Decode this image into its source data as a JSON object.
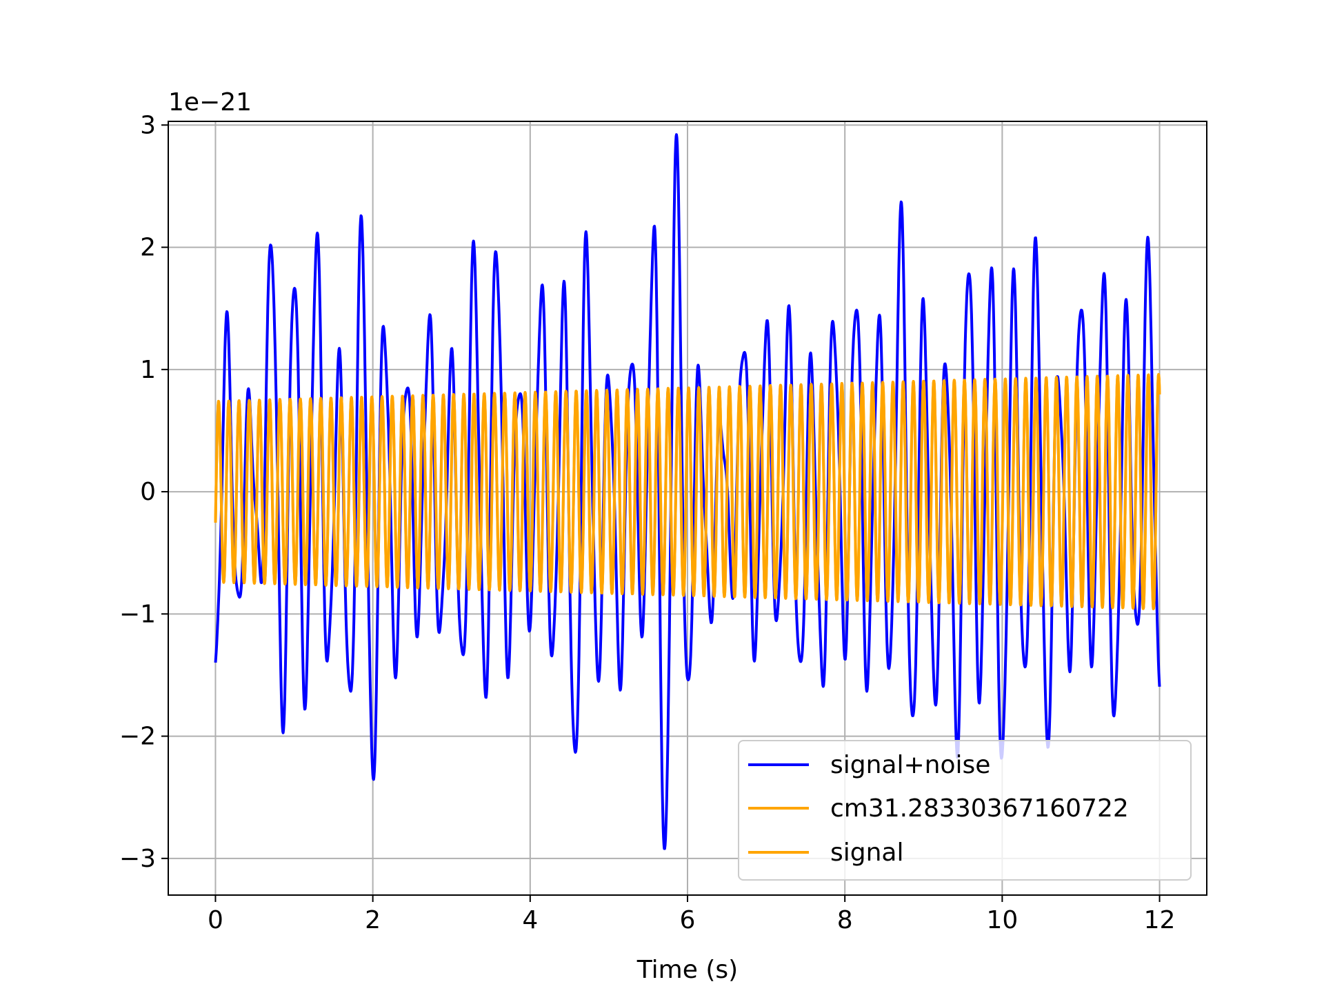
{
  "chart_data": {
    "type": "line",
    "title": "",
    "xlabel": "Time (s)",
    "ylabel": "",
    "y_offset_text": "1e−21",
    "y_scale": 1e-21,
    "xlim": [
      -0.6,
      12.6
    ],
    "ylim": [
      -3.3,
      3.03
    ],
    "xticks": [
      0,
      2,
      4,
      6,
      8,
      10,
      12
    ],
    "xtick_labels": [
      "0",
      "2",
      "4",
      "6",
      "8",
      "10",
      "12"
    ],
    "yticks": [
      -3,
      -2,
      -1,
      0,
      1,
      2,
      3
    ],
    "ytick_labels": [
      "−3",
      "−2",
      "−1",
      "0",
      "1",
      "2",
      "3"
    ],
    "grid": true,
    "legend_position": "lower right",
    "x_range": [
      0,
      12
    ],
    "series": [
      {
        "name": "signal+noise",
        "color": "#0000ff",
        "sample_step": 0.4,
        "start_x": 0,
        "peaks_approx": [
          -1.5,
          1.3,
          -1.0,
          0.7,
          -0.7,
          2.07,
          -1.8,
          1.83,
          -1.65,
          2.08,
          -1.45,
          1.0,
          -1.8,
          2.13,
          -2.32,
          1.42,
          -1.35,
          1.0,
          -1.05,
          1.4,
          -1.2,
          1.0,
          -1.5,
          1.92,
          -1.65,
          2.03,
          -1.35,
          0.95,
          -1.0,
          1.65,
          -1.4,
          1.55,
          -2.3,
          2.0,
          -1.5,
          1.0,
          -1.45,
          1.2,
          -1.05,
          2.15,
          -3.0,
          2.75,
          -1.7,
          0.9,
          -1.0,
          0.6,
          -0.7,
          1.3,
          -1.25,
          1.35,
          -1.1,
          1.35,
          -1.55,
          1.0,
          -1.55,
          1.45,
          -1.2,
          1.65,
          -1.5,
          1.4,
          -1.5,
          2.2,
          -2.0,
          1.45,
          -1.7,
          1.1,
          -2.0,
          1.95,
          -1.6,
          1.8,
          -2.25,
          1.65,
          -1.6,
          1.95,
          -2.05,
          1.0,
          -1.3,
          1.65,
          -1.3,
          1.75,
          -1.9,
          1.4,
          -1.25,
          1.95,
          -1.6
        ]
      },
      {
        "name": "cm31.28330367160722",
        "color": "#ffa500",
        "frequency_hz": 7.7,
        "amplitude_start": 0.74,
        "amplitude_end": 0.96
      },
      {
        "name": "signal",
        "color": "#ffa500",
        "frequency_hz": 7.7,
        "amplitude_start": 0.74,
        "amplitude_end": 0.96
      }
    ]
  }
}
